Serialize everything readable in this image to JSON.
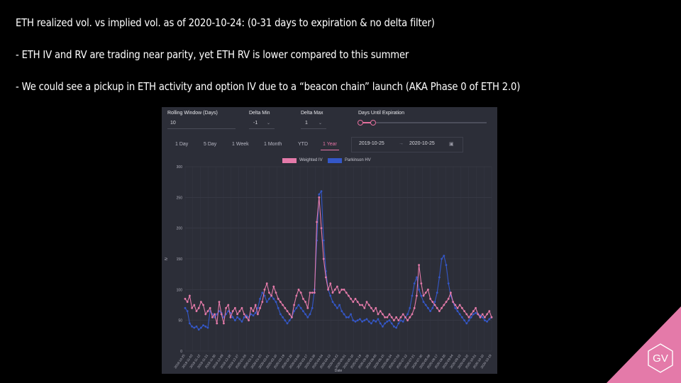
{
  "slide": {
    "bullets": [
      "ETH realized vol. vs implied vol. as of 2020-10-24: (0-31 days to expiration & no delta filter)",
      "- ETH IV and RV are trading near parity, yet ETH RV is lower compared to this summer",
      "- We could see a pickup in ETH activity and option IV due to a “beacon chain” launch (AKA Phase 0 of ETH 2.0)"
    ],
    "logo_text": "GV",
    "accent_color": "#e47aa9"
  },
  "controls": {
    "rolling_window": {
      "label": "Rolling Window (Days)",
      "value": "10"
    },
    "delta_min": {
      "label": "Delta Min",
      "value": "-1"
    },
    "delta_max": {
      "label": "Delta Max",
      "value": "1"
    },
    "days_until_expiration": {
      "label": "Days Until Expiration"
    },
    "tabs": [
      "1 Day",
      "5 Day",
      "1 Week",
      "1 Month",
      "YTD",
      "1 Year"
    ],
    "active_tab": "1 Year",
    "date_start": "2019-10-25",
    "date_end": "2020-10-25",
    "date_separator": "→"
  },
  "chart_data": {
    "type": "line",
    "ylabel": "IV",
    "xlabel": "Date",
    "ylim": [
      0,
      300
    ],
    "yticks": [
      0,
      50,
      100,
      150,
      200,
      250,
      300
    ],
    "grid": true,
    "legend_position": "top-center",
    "xtick_labels": [
      "2019-10-25",
      "2019-11-03",
      "2019-11-12",
      "2019-11-21",
      "2019-11-30",
      "2019-12-09",
      "2019-12-18",
      "2019-12-27",
      "2020-01-05",
      "2020-01-14",
      "2020-01-23",
      "2020-02-01",
      "2020-02-10",
      "2020-02-19",
      "2020-02-28",
      "2020-03-08",
      "2020-03-17",
      "2020-03-26",
      "2020-04-04",
      "2020-04-13",
      "2020-04-22",
      "2020-05-01",
      "2020-05-10",
      "2020-05-19",
      "2020-05-28",
      "2020-06-06",
      "2020-06-15",
      "2020-06-24",
      "2020-07-03",
      "2020-07-12",
      "2020-07-21",
      "2020-07-30",
      "2020-08-08",
      "2020-08-17",
      "2020-08-26",
      "2020-09-04",
      "2020-09-13",
      "2020-09-22",
      "2020-10-01",
      "2020-10-10",
      "2020-10-19"
    ],
    "series": [
      {
        "name": "Weighted IV",
        "color": "#e47aa9",
        "values": [
          85,
          80,
          90,
          70,
          75,
          65,
          70,
          80,
          75,
          60,
          65,
          70,
          55,
          60,
          45,
          80,
          60,
          45,
          70,
          75,
          55,
          65,
          70,
          60,
          65,
          70,
          60,
          55,
          50,
          70,
          65,
          75,
          60,
          70,
          80,
          100,
          110,
          95,
          90,
          105,
          95,
          85,
          80,
          75,
          70,
          65,
          60,
          55,
          75,
          90,
          100,
          95,
          85,
          80,
          70,
          95,
          95,
          95,
          210,
          250,
          200,
          150,
          120,
          100,
          110,
          95,
          100,
          105,
          95,
          100,
          100,
          95,
          90,
          85,
          80,
          85,
          80,
          75,
          75,
          70,
          80,
          75,
          70,
          65,
          70,
          60,
          65,
          60,
          55,
          55,
          60,
          55,
          50,
          55,
          50,
          55,
          60,
          55,
          50,
          55,
          60,
          70,
          90,
          140,
          110,
          90,
          95,
          100,
          85,
          80,
          75,
          70,
          65,
          70,
          75,
          80,
          85,
          95,
          80,
          75,
          70,
          75,
          70,
          65,
          60,
          55,
          60,
          65,
          70,
          60,
          55,
          60,
          55,
          60,
          65,
          55
        ]
      },
      {
        "name": "Parkinson HV",
        "color": "#3457c8",
        "values": [
          70,
          65,
          45,
          40,
          38,
          40,
          35,
          38,
          42,
          40,
          38,
          65,
          60,
          55,
          60,
          65,
          62,
          55,
          60,
          65,
          62,
          55,
          50,
          55,
          52,
          48,
          55,
          58,
          55,
          60,
          58,
          62,
          70,
          85,
          95,
          90,
          80,
          85,
          90,
          85,
          80,
          70,
          60,
          55,
          50,
          45,
          50,
          55,
          65,
          70,
          75,
          70,
          65,
          60,
          55,
          60,
          70,
          100,
          180,
          255,
          260,
          180,
          130,
          100,
          90,
          80,
          75,
          70,
          75,
          65,
          60,
          55,
          55,
          60,
          50,
          48,
          50,
          52,
          48,
          50,
          52,
          48,
          45,
          50,
          48,
          52,
          45,
          40,
          45,
          48,
          50,
          45,
          40,
          38,
          45,
          50,
          48,
          55,
          60,
          70,
          90,
          110,
          120,
          100,
          90,
          80,
          75,
          70,
          65,
          70,
          80,
          95,
          120,
          150,
          155,
          140,
          110,
          90,
          80,
          70,
          65,
          60,
          55,
          50,
          45,
          50,
          55,
          60,
          62,
          60,
          58,
          55,
          50,
          48,
          52,
          55
        ]
      }
    ]
  }
}
